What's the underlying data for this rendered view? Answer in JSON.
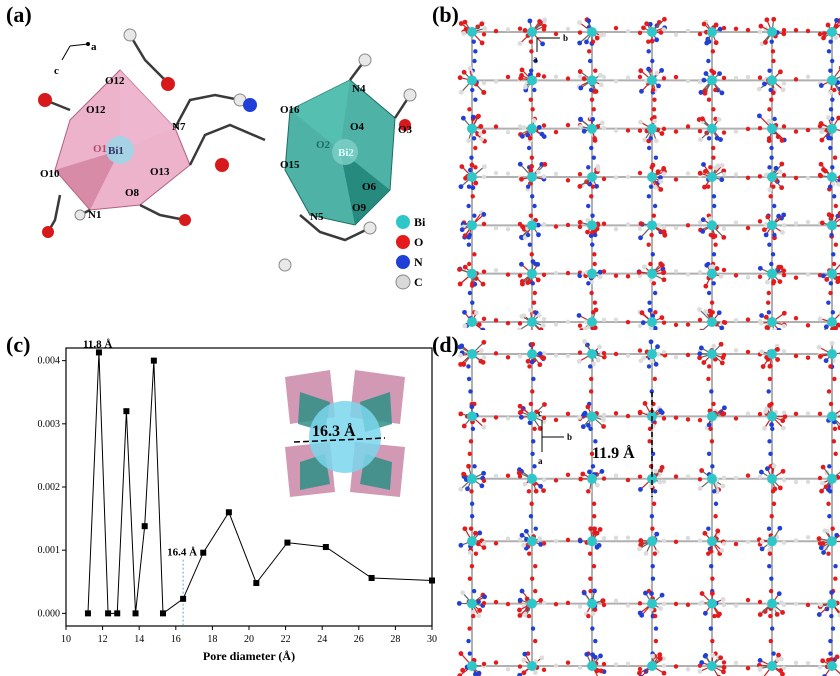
{
  "panel_labels": {
    "a": "(a)",
    "b": "(b)",
    "c": "(c)",
    "d": "(d)"
  },
  "panel_a": {
    "axis_a": "a",
    "axis_c": "c",
    "atom_labels": [
      "O12",
      "O12",
      "O1",
      "Bi1",
      "N7",
      "O13",
      "O10",
      "O8",
      "N1",
      "O16",
      "O2",
      "Bi2",
      "N4",
      "O4",
      "O3",
      "O15",
      "O6",
      "O9",
      "N5"
    ],
    "legend": [
      {
        "label": "Bi",
        "color": "#2ec7c9"
      },
      {
        "label": "O",
        "color": "#e41a1c"
      },
      {
        "label": "N",
        "color": "#1f3fd6"
      },
      {
        "label": "C",
        "color": "#d9d9d9"
      }
    ]
  },
  "panel_b": {
    "axis_b": "b",
    "axis_a": "a"
  },
  "panel_d": {
    "axis_c": "c",
    "axis_b": "b",
    "axis_a": "a",
    "dimension": "11.9 Å"
  },
  "chart_data": {
    "type": "line",
    "xlabel": "Pore diameter (Å)",
    "ylabel": "",
    "xlim": [
      10,
      30
    ],
    "ylim": [
      -0.0002,
      0.0042
    ],
    "xticks": [
      10,
      12,
      14,
      16,
      18,
      20,
      22,
      24,
      26,
      28,
      30
    ],
    "yticks": [
      0.0,
      0.001,
      0.002,
      0.003,
      0.004
    ],
    "ytick_labels": [
      "0.000",
      "0.001",
      "0.002",
      "0.003",
      "0.004"
    ],
    "x": [
      11.2,
      11.8,
      12.3,
      12.8,
      13.3,
      13.8,
      14.3,
      14.8,
      15.3,
      16.4,
      17.5,
      18.9,
      20.4,
      22.1,
      24.2,
      26.7,
      30.0
    ],
    "y": [
      0.0,
      0.00413,
      0.0,
      0.0,
      0.0032,
      0.0,
      0.00138,
      0.004,
      0.0,
      0.00023,
      0.00096,
      0.0016,
      0.00048,
      0.00112,
      0.00105,
      0.00056,
      0.00052
    ],
    "annotations": [
      {
        "text": "11.8 Å"
      },
      {
        "text": "16.4 Å"
      }
    ],
    "inset_label": "16.3 Å",
    "grid": false
  }
}
